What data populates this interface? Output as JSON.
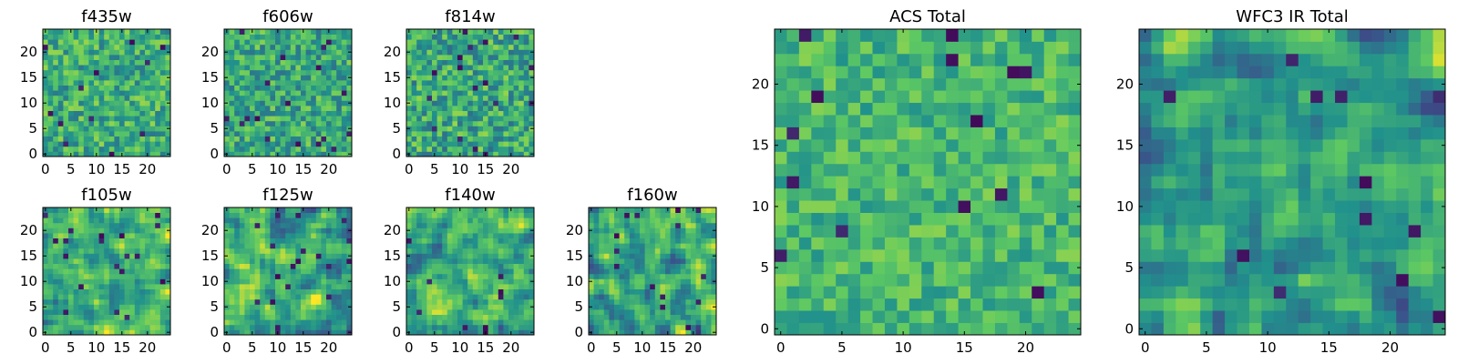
{
  "figure": {
    "colormap": "viridis",
    "colormap_stops": [
      "#440154",
      "#3b528b",
      "#21918c",
      "#5ec962",
      "#fde725"
    ]
  },
  "chart_data": [
    {
      "type": "heatmap",
      "title": "f435w",
      "grid_size": 25,
      "xlim": [
        0,
        24
      ],
      "ylim": [
        0,
        24
      ],
      "xticks": [
        "0",
        "5",
        "10",
        "15",
        "20"
      ],
      "yticks": [
        "0",
        "5",
        "10",
        "15",
        "20"
      ],
      "seed": 11,
      "smooth": 0,
      "bias": 0.62,
      "spread": 0.22
    },
    {
      "type": "heatmap",
      "title": "f606w",
      "grid_size": 25,
      "xlim": [
        0,
        24
      ],
      "ylim": [
        0,
        24
      ],
      "xticks": [
        "0",
        "5",
        "10",
        "15",
        "20"
      ],
      "yticks": [
        "0",
        "5",
        "10",
        "15",
        "20"
      ],
      "seed": 23,
      "smooth": 0,
      "bias": 0.6,
      "spread": 0.22
    },
    {
      "type": "heatmap",
      "title": "f814w",
      "grid_size": 25,
      "xlim": [
        0,
        24
      ],
      "ylim": [
        0,
        24
      ],
      "xticks": [
        "0",
        "5",
        "10",
        "15",
        "20"
      ],
      "yticks": [
        "0",
        "5",
        "10",
        "15",
        "20"
      ],
      "seed": 37,
      "smooth": 0,
      "bias": 0.6,
      "spread": 0.24
    },
    {
      "type": "heatmap",
      "title": "f105w",
      "grid_size": 25,
      "xlim": [
        0,
        24
      ],
      "ylim": [
        0,
        24
      ],
      "xticks": [
        "0",
        "5",
        "10",
        "15",
        "20"
      ],
      "yticks": [
        "0",
        "5",
        "10",
        "15",
        "20"
      ],
      "seed": 41,
      "smooth": 1,
      "bias": 0.64,
      "spread": 0.26
    },
    {
      "type": "heatmap",
      "title": "f125w",
      "grid_size": 25,
      "xlim": [
        0,
        24
      ],
      "ylim": [
        0,
        24
      ],
      "xticks": [
        "0",
        "5",
        "10",
        "15",
        "20"
      ],
      "yticks": [
        "0",
        "5",
        "10",
        "15",
        "20"
      ],
      "seed": 53,
      "smooth": 1,
      "bias": 0.62,
      "spread": 0.28
    },
    {
      "type": "heatmap",
      "title": "f140w",
      "grid_size": 25,
      "xlim": [
        0,
        24
      ],
      "ylim": [
        0,
        24
      ],
      "xticks": [
        "0",
        "5",
        "10",
        "15",
        "20"
      ],
      "yticks": [
        "0",
        "5",
        "10",
        "15",
        "20"
      ],
      "seed": 67,
      "smooth": 1,
      "bias": 0.64,
      "spread": 0.27
    },
    {
      "type": "heatmap",
      "title": "f160w",
      "grid_size": 25,
      "xlim": [
        0,
        24
      ],
      "ylim": [
        0,
        24
      ],
      "xticks": [
        "0",
        "5",
        "10",
        "15",
        "20"
      ],
      "yticks": [
        "0",
        "5",
        "10",
        "15",
        "20"
      ],
      "seed": 79,
      "smooth": 1,
      "bias": 0.62,
      "spread": 0.3
    },
    {
      "type": "heatmap",
      "title": "ACS Total",
      "grid_size": 25,
      "xlim": [
        0,
        24
      ],
      "ylim": [
        0,
        24
      ],
      "xticks": [
        "0",
        "5",
        "10",
        "15",
        "20"
      ],
      "yticks": [
        "0",
        "5",
        "10",
        "15",
        "20"
      ],
      "seed": 97,
      "smooth": 0,
      "bias": 0.66,
      "spread": 0.16
    },
    {
      "type": "heatmap",
      "title": "WFC3 IR Total",
      "grid_size": 25,
      "xlim": [
        0,
        24
      ],
      "ylim": [
        0,
        24
      ],
      "xticks": [
        "0",
        "5",
        "10",
        "15",
        "20"
      ],
      "yticks": [
        "0",
        "5",
        "10",
        "15",
        "20"
      ],
      "seed": 113,
      "smooth": 1,
      "bias": 0.55,
      "spread": 0.26
    }
  ]
}
